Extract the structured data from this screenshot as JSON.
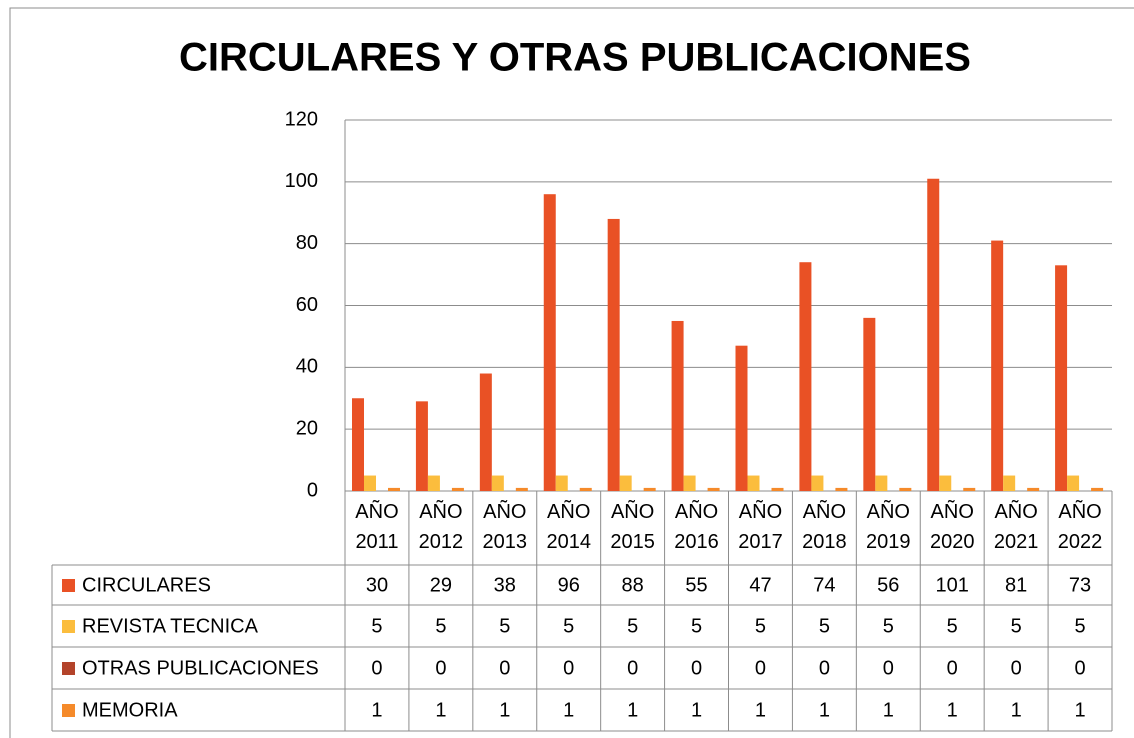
{
  "chart_data": {
    "type": "bar",
    "title": "CIRCULARES Y OTRAS PUBLICACIONES",
    "categories": [
      "AÑO 2011",
      "AÑO 2012",
      "AÑO 2013",
      "AÑO 2014",
      "AÑO 2015",
      "AÑO 2016",
      "AÑO 2017",
      "AÑO 2018",
      "AÑO 2019",
      "AÑO 2020",
      "AÑO 2021",
      "AÑO 2022"
    ],
    "series": [
      {
        "name": "CIRCULARES",
        "color": "#e95125",
        "values": [
          30,
          29,
          38,
          96,
          88,
          55,
          47,
          74,
          56,
          101,
          81,
          73
        ]
      },
      {
        "name": "REVISTA TECNICA",
        "color": "#fbbd3d",
        "values": [
          5,
          5,
          5,
          5,
          5,
          5,
          5,
          5,
          5,
          5,
          5,
          5
        ]
      },
      {
        "name": "OTRAS PUBLICACIONES",
        "color": "#b3432a",
        "values": [
          0,
          0,
          0,
          0,
          0,
          0,
          0,
          0,
          0,
          0,
          0,
          0
        ]
      },
      {
        "name": "MEMORIA",
        "color": "#f58a2a",
        "values": [
          1,
          1,
          1,
          1,
          1,
          1,
          1,
          1,
          1,
          1,
          1,
          1
        ]
      }
    ],
    "ylim": [
      0,
      120
    ],
    "yticks": [
      0,
      20,
      40,
      60,
      80,
      100,
      120
    ],
    "grid": true
  }
}
